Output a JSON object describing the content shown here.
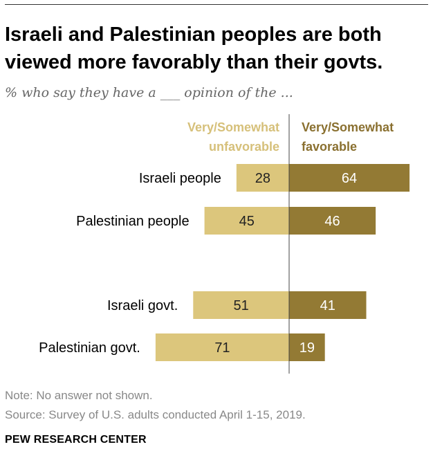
{
  "title": "Israeli and Palestinian peoples are both viewed more favorably than their govts.",
  "subtitle": "% who say they have a ___ opinion of the ...",
  "colors": {
    "unfavorable": "#dcc67c",
    "favorable": "#937a34",
    "unfavorable_label": "#d6c07a",
    "favorable_label": "#8a7030"
  },
  "chart_data": {
    "type": "bar",
    "orientation": "horizontal-diverging",
    "categories": [
      "Israeli people",
      "Palestinian people",
      "Israeli govt.",
      "Palestinian govt."
    ],
    "series": [
      {
        "name": "Very/Somewhat unfavorable",
        "values": [
          28,
          45,
          51,
          71
        ]
      },
      {
        "name": "Very/Somewhat favorable",
        "values": [
          64,
          46,
          41,
          19
        ]
      }
    ],
    "legend": {
      "position": "top",
      "unfavorable_lines": [
        "Very/Somewhat",
        "unfavorable"
      ],
      "favorable_lines": [
        "Very/Somewhat",
        "favorable"
      ]
    }
  },
  "footer": {
    "note": "Note: No answer not shown.",
    "source": "Source: Survey of U.S. adults conducted April 1-15, 2019.",
    "org": "PEW RESEARCH CENTER"
  }
}
